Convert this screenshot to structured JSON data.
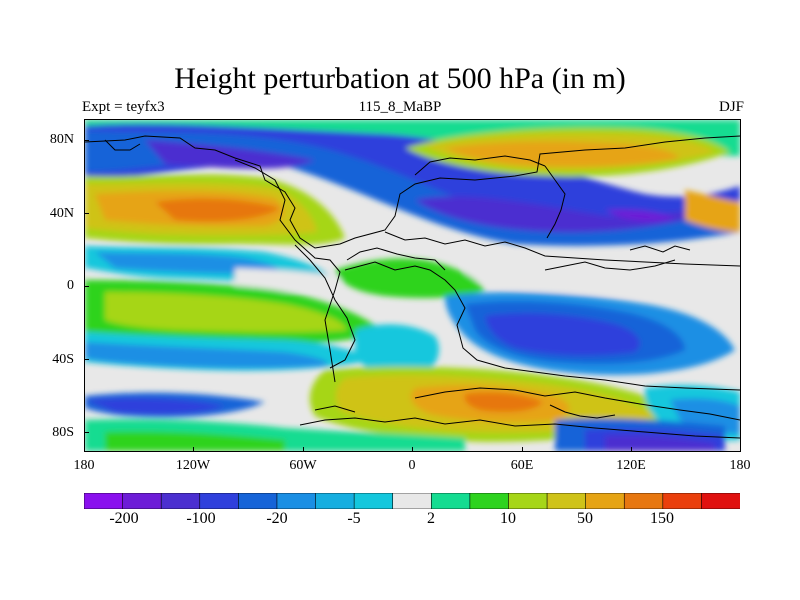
{
  "title": "Height perturbation at 500 hPa (in m)",
  "subtitle_left": "Expt = teyfx3",
  "subtitle_center": "115_8_MaBP",
  "subtitle_right": "DJF",
  "lat_labels": [
    "80N",
    "40N",
    "0",
    "40S",
    "80S"
  ],
  "lon_labels": [
    "180",
    "120W",
    "60W",
    "0",
    "60E",
    "120E",
    "180"
  ],
  "colorbar": {
    "colors": [
      "#8a10ee",
      "#6d1cd7",
      "#4b2fd0",
      "#2f40dc",
      "#1664d8",
      "#1b8fe4",
      "#16aee0",
      "#14c7dd",
      "#e8e8e8",
      "#14dc91",
      "#2ed31f",
      "#a6d618",
      "#cfc319",
      "#e6a414",
      "#e77710",
      "#ea3f0c",
      "#e0110f"
    ],
    "labels": [
      "-200",
      "-100",
      "-20",
      "-5",
      "2",
      "10",
      "50",
      "150"
    ]
  },
  "map_colors": {
    "deep_neg": "#4b2fd0",
    "neg": "#2f40dc",
    "mid_neg": "#1664d8",
    "light_neg": "#1b8fe4",
    "faint_neg": "#16aee0",
    "cyan": "#14c7dd",
    "white": "#e8e8e8",
    "teal": "#14dc91",
    "green": "#2ed31f",
    "yellowgreen": "#a6d618",
    "yellow": "#cfc319",
    "orange": "#e6a414",
    "darkorange": "#e77710",
    "purple": "#6d1cd7"
  }
}
